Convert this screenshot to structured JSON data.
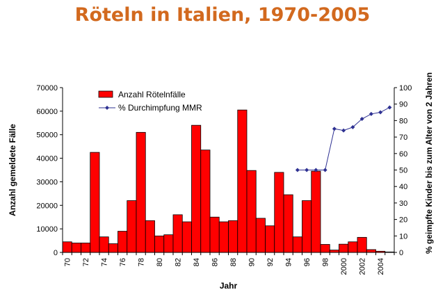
{
  "chart_data": {
    "type": "bar+line",
    "title": "Röteln in Italien, 1970-2005",
    "xlabel": "Jahr",
    "ylabel_left": "Anzahl gemeldete Fälle",
    "ylabel_right": "% geimpfte Kinder bis zum Alter von 2 Jahren",
    "ylim_left": [
      0,
      70000
    ],
    "ylim_right": [
      0,
      100
    ],
    "yticks_left": [
      "0",
      "10000",
      "20000",
      "30000",
      "40000",
      "50000",
      "60000",
      "70000"
    ],
    "yticks_right": [
      "0",
      "10",
      "20",
      "30",
      "40",
      "50",
      "60",
      "70",
      "80",
      "90",
      "100"
    ],
    "xtick_labels": [
      "70",
      "72",
      "74",
      "76",
      "78",
      "80",
      "82",
      "84",
      "86",
      "88",
      "90",
      "92",
      "94",
      "96",
      "98",
      "2000",
      "2002",
      "2004"
    ],
    "years": [
      1970,
      1971,
      1972,
      1973,
      1974,
      1975,
      1976,
      1977,
      1978,
      1979,
      1980,
      1981,
      1982,
      1983,
      1984,
      1985,
      1986,
      1987,
      1988,
      1989,
      1990,
      1991,
      1992,
      1993,
      1994,
      1995,
      1996,
      1997,
      1998,
      1999,
      2000,
      2001,
      2002,
      2003,
      2004,
      2005
    ],
    "bar_series": {
      "name": "Anzahl Rötelnfälle",
      "color": "#ff0000",
      "values": [
        4500,
        4000,
        4000,
        42500,
        6600,
        3700,
        9000,
        22000,
        51000,
        13500,
        7000,
        7500,
        16000,
        13000,
        54000,
        43500,
        15000,
        13000,
        13500,
        60500,
        34800,
        14500,
        11300,
        34000,
        24500,
        6600,
        22000,
        34500,
        3400,
        1000,
        3500,
        4500,
        6400,
        1200,
        500,
        200
      ]
    },
    "line_series": {
      "name": "% Durchimpfung MMR",
      "color": "#2e3192",
      "x": [
        1995,
        1996,
        1997,
        1998,
        1999,
        2000,
        2001,
        2002,
        2003,
        2004,
        2005
      ],
      "values": [
        50,
        50,
        50,
        50,
        75,
        74,
        76,
        81,
        84,
        85,
        88
      ]
    }
  }
}
